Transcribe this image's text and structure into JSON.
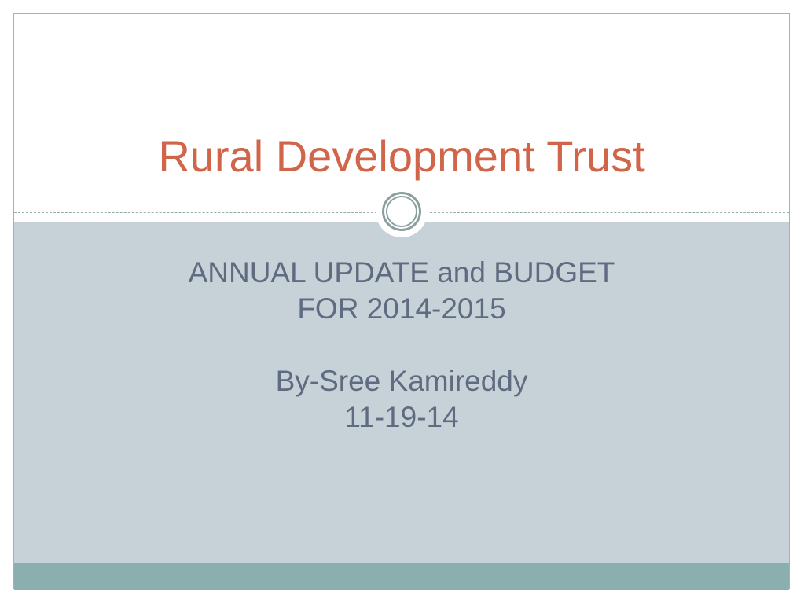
{
  "slide": {
    "title": "Rural Development Trust",
    "subtitle_lines": [
      "ANNUAL UPDATE and BUDGET",
      "FOR 2014-2015",
      "",
      "By-Sree Kamireddy",
      "11-19-14"
    ]
  },
  "colors": {
    "title": "#d0654a",
    "body_bg": "#c7d2d8",
    "footer_band": "#8aafae",
    "subtitle": "#5f6b80"
  }
}
